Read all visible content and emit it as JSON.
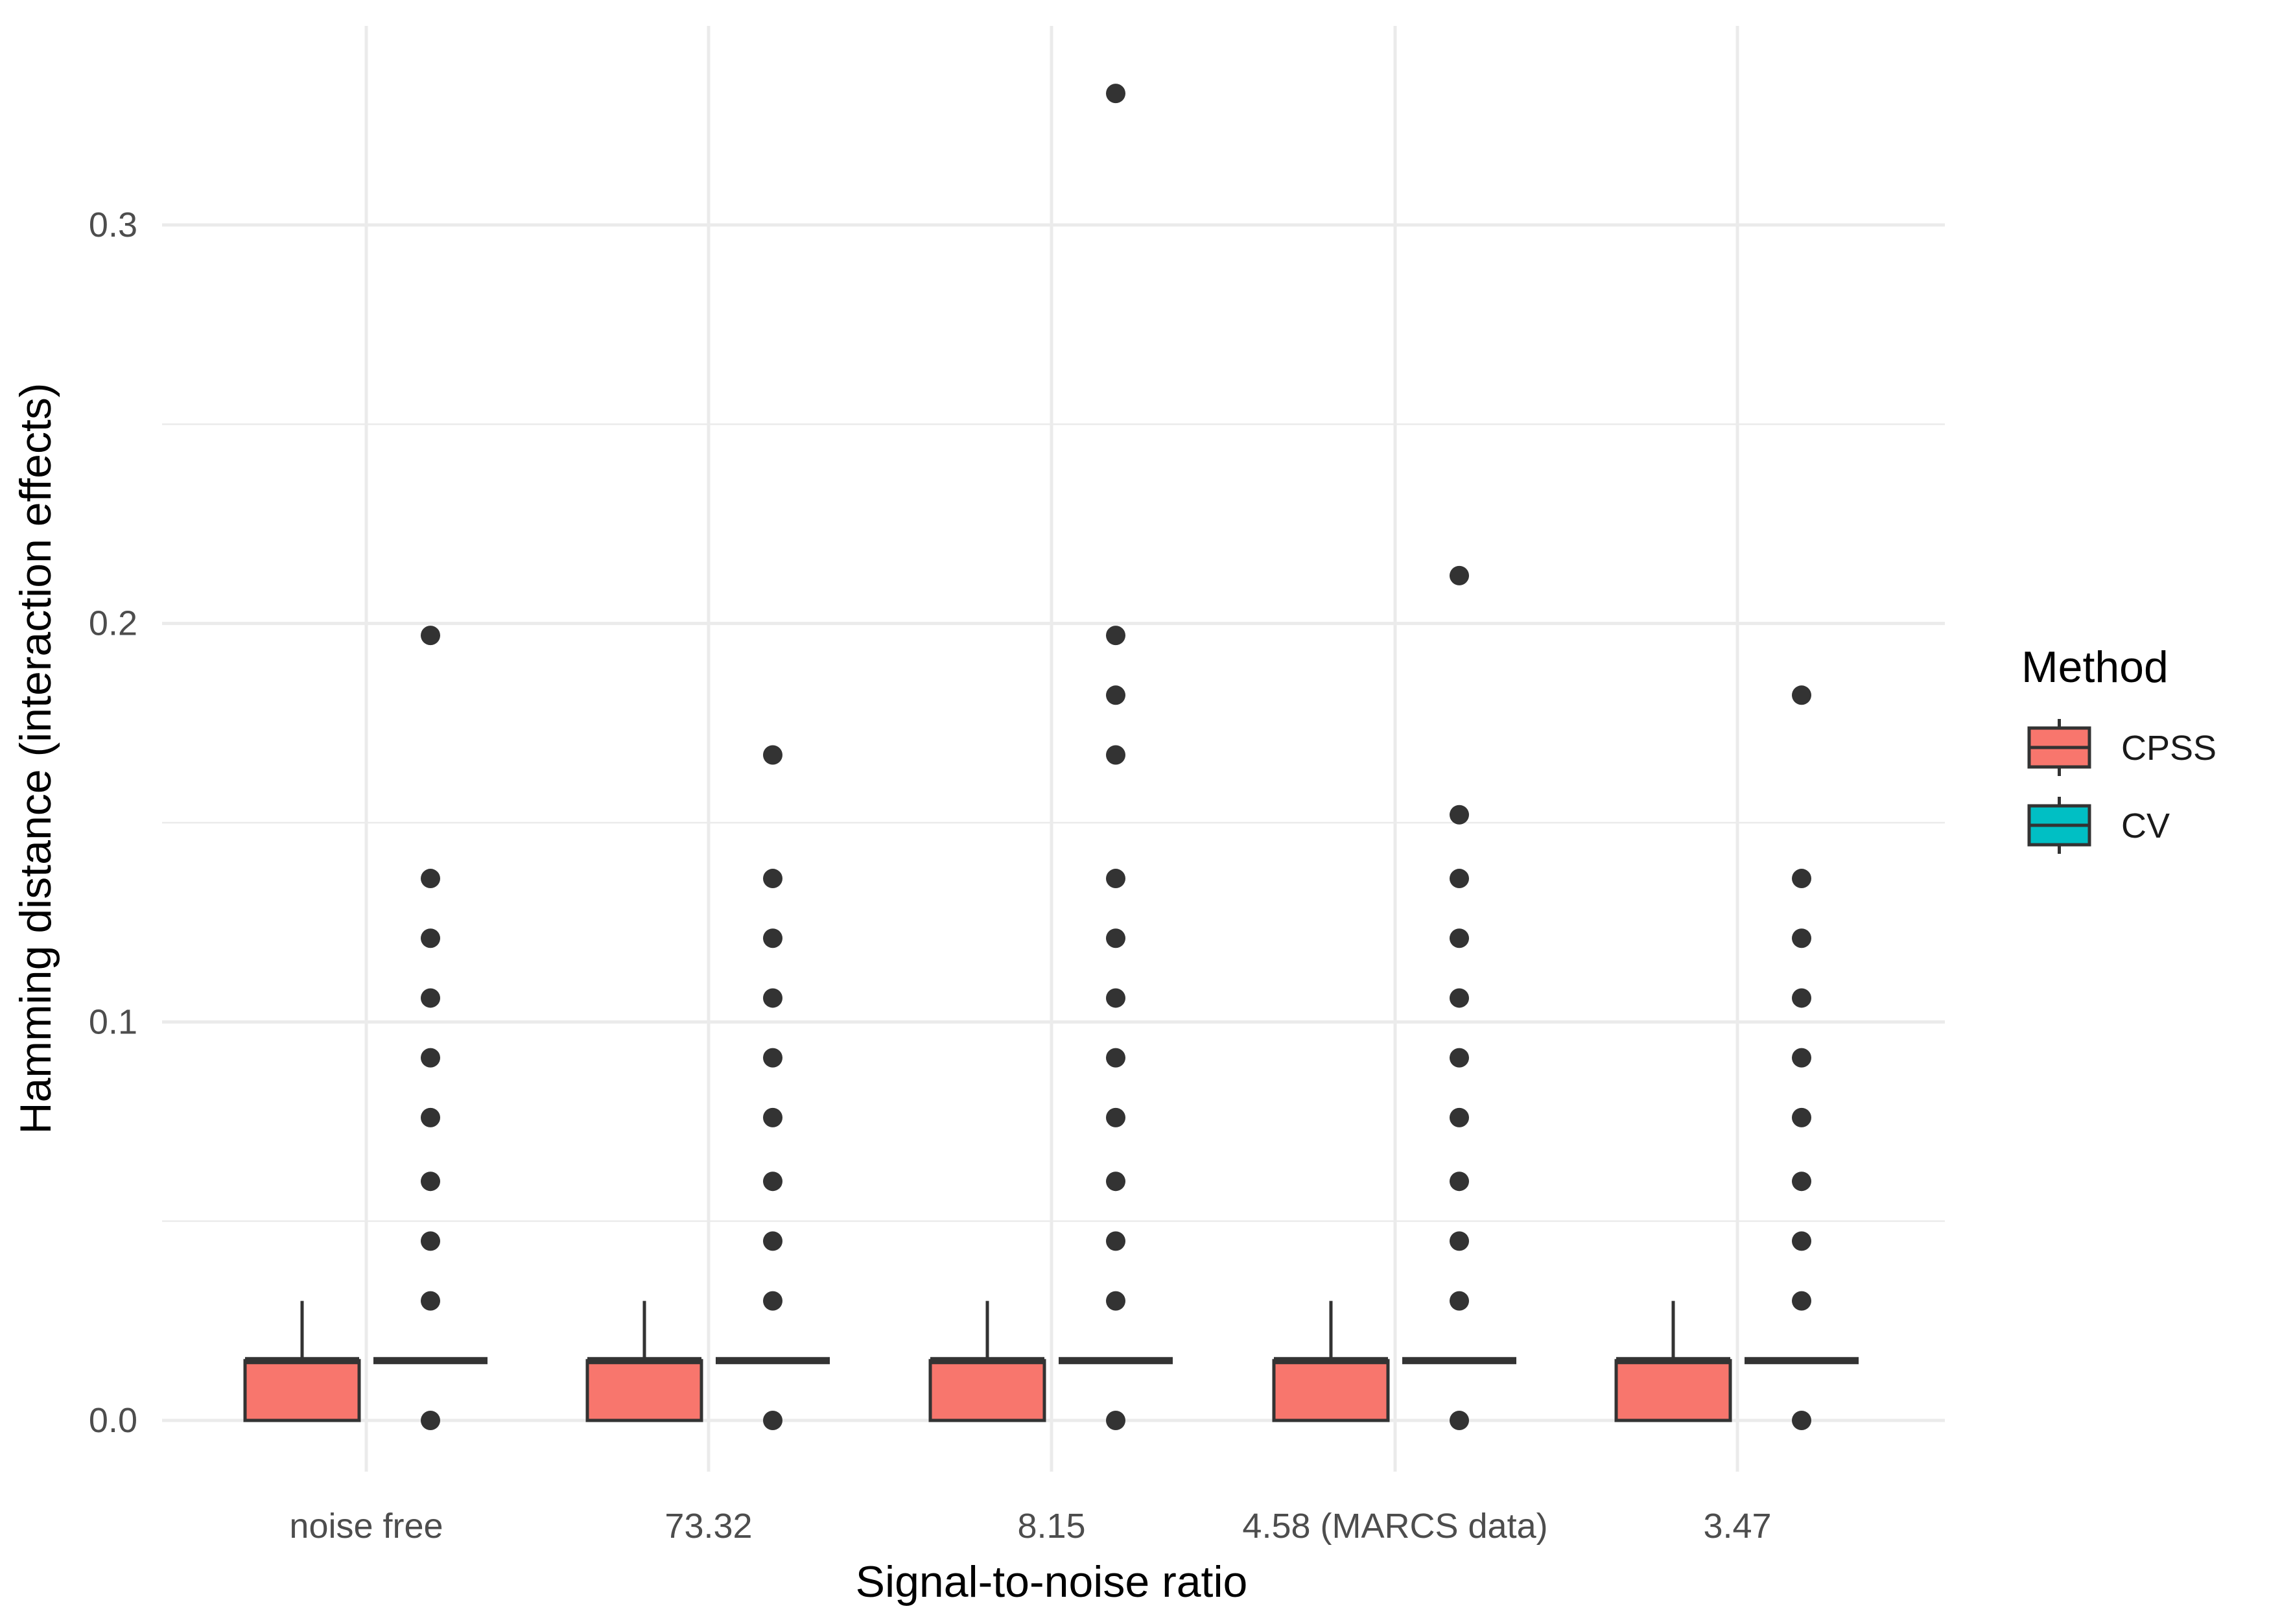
{
  "chart_data": {
    "type": "box",
    "xlabel": "Signal-to-noise ratio",
    "ylabel": "Hamming distance (interaction effects)",
    "categories": [
      "noise free",
      "73.32",
      "8.15",
      "4.58 (MARCS data)",
      "3.47"
    ],
    "yticks": [
      "0.0",
      "0.1",
      "0.2",
      "0.3"
    ],
    "ylim": [
      -0.011,
      0.35
    ],
    "grid": true,
    "legend": {
      "title": "Method",
      "position": "right",
      "entries": [
        "CPSS",
        "CV"
      ]
    },
    "series": [
      {
        "name": "CPSS",
        "color": "#F8766D",
        "boxes": [
          {
            "q1": 0.0,
            "median": 0.015,
            "q3": 0.015,
            "whisker_low": 0.0,
            "whisker_high": 0.03,
            "outliers": []
          },
          {
            "q1": 0.0,
            "median": 0.015,
            "q3": 0.015,
            "whisker_low": 0.0,
            "whisker_high": 0.03,
            "outliers": []
          },
          {
            "q1": 0.0,
            "median": 0.015,
            "q3": 0.015,
            "whisker_low": 0.0,
            "whisker_high": 0.03,
            "outliers": []
          },
          {
            "q1": 0.0,
            "median": 0.015,
            "q3": 0.015,
            "whisker_low": 0.0,
            "whisker_high": 0.03,
            "outliers": []
          },
          {
            "q1": 0.0,
            "median": 0.015,
            "q3": 0.015,
            "whisker_low": 0.0,
            "whisker_high": 0.03,
            "outliers": []
          }
        ]
      },
      {
        "name": "CV",
        "color": "#00BFC4",
        "boxes": [
          {
            "q1": 0.015,
            "median": 0.015,
            "q3": 0.015,
            "whisker_low": 0.015,
            "whisker_high": 0.015,
            "outliers": [
              0.0,
              0.03,
              0.045,
              0.06,
              0.076,
              0.091,
              0.106,
              0.121,
              0.136,
              0.197
            ]
          },
          {
            "q1": 0.015,
            "median": 0.015,
            "q3": 0.015,
            "whisker_low": 0.015,
            "whisker_high": 0.015,
            "outliers": [
              0.0,
              0.03,
              0.045,
              0.06,
              0.076,
              0.091,
              0.106,
              0.121,
              0.136,
              0.167
            ]
          },
          {
            "q1": 0.015,
            "median": 0.015,
            "q3": 0.015,
            "whisker_low": 0.015,
            "whisker_high": 0.015,
            "outliers": [
              0.0,
              0.03,
              0.045,
              0.06,
              0.076,
              0.091,
              0.106,
              0.121,
              0.136,
              0.167,
              0.182,
              0.197,
              0.333
            ]
          },
          {
            "q1": 0.015,
            "median": 0.015,
            "q3": 0.015,
            "whisker_low": 0.015,
            "whisker_high": 0.015,
            "outliers": [
              0.0,
              0.03,
              0.045,
              0.06,
              0.076,
              0.091,
              0.106,
              0.121,
              0.136,
              0.152,
              0.212
            ]
          },
          {
            "q1": 0.015,
            "median": 0.015,
            "q3": 0.015,
            "whisker_low": 0.015,
            "whisker_high": 0.015,
            "outliers": [
              0.0,
              0.03,
              0.045,
              0.06,
              0.076,
              0.091,
              0.106,
              0.121,
              0.136,
              0.182
            ]
          }
        ]
      }
    ]
  }
}
